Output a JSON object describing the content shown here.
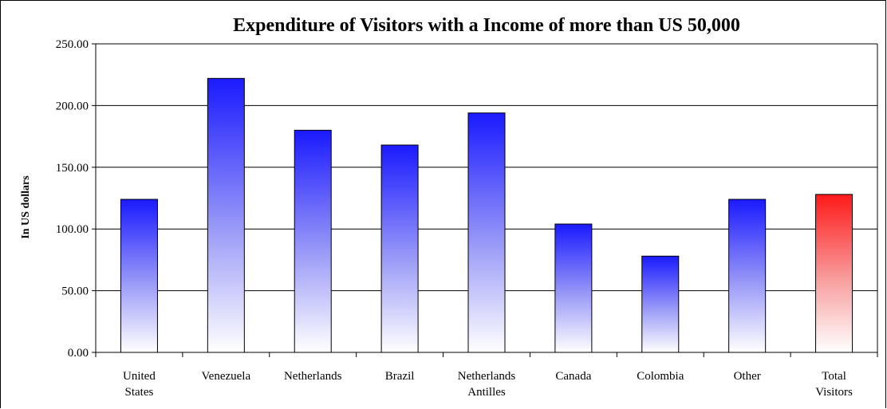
{
  "chart_data": {
    "type": "bar",
    "title": "Expenditure of Visitors with a Income of more than US 50,000",
    "xlabel": "",
    "ylabel": "In US dollars",
    "ylim": [
      0,
      250
    ],
    "yticks": [
      "0.00",
      "50.00",
      "100.00",
      "150.00",
      "200.00",
      "250.00"
    ],
    "grid": true,
    "legend": "none",
    "categories": [
      [
        "United",
        "States"
      ],
      [
        "Venezuela"
      ],
      [
        "Netherlands"
      ],
      [
        "Brazil"
      ],
      [
        "Netherlands",
        "Antilles"
      ],
      [
        "Canada"
      ],
      [
        "Colombia"
      ],
      [
        "Other"
      ],
      [
        "Total",
        "Visitors"
      ]
    ],
    "values": [
      124,
      222,
      180,
      168,
      194,
      104,
      78,
      124,
      128
    ],
    "colors": {
      "bar": "#1a1aff",
      "highlight": "#ff1a1a"
    }
  }
}
